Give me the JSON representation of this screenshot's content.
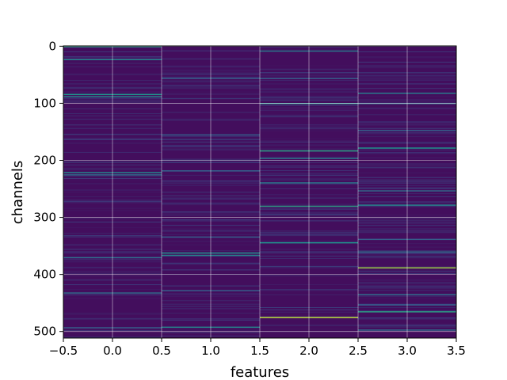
{
  "chart_data": {
    "type": "heatmap",
    "title": "",
    "xlabel": "features",
    "ylabel": "channels",
    "xlim": [
      -0.5,
      3.5
    ],
    "ylim": [
      511.5,
      -0.5
    ],
    "y_inverted": true,
    "x_ticks": [
      -0.5,
      0.0,
      0.5,
      1.0,
      1.5,
      2.0,
      2.5,
      3.0,
      3.5
    ],
    "x_tick_labels": [
      "−0.5",
      "0.0",
      "0.5",
      "1.0",
      "1.5",
      "2.0",
      "2.5",
      "3.0",
      "3.5"
    ],
    "y_ticks": [
      0,
      100,
      200,
      300,
      400,
      500
    ],
    "y_tick_labels": [
      "0",
      "100",
      "200",
      "300",
      "400",
      "500"
    ],
    "grid": true,
    "colormap": "viridis",
    "colormap_stops": [
      "#440154",
      "#3b528b",
      "#21918c",
      "#5ec962",
      "#fde725"
    ],
    "n_channels": 512,
    "features": [
      0,
      1,
      2,
      3
    ],
    "background_level": 0.04,
    "highlights": [
      {
        "feature": 0,
        "channel": 0,
        "value": 0.55
      },
      {
        "feature": 0,
        "channel": 23,
        "value": 0.45
      },
      {
        "feature": 0,
        "channel": 84,
        "value": 0.5
      },
      {
        "feature": 0,
        "channel": 88,
        "value": 0.45
      },
      {
        "feature": 0,
        "channel": 221,
        "value": 0.45
      },
      {
        "feature": 0,
        "channel": 225,
        "value": 0.35
      },
      {
        "feature": 0,
        "channel": 370,
        "value": 0.35
      },
      {
        "feature": 0,
        "channel": 432,
        "value": 0.35
      },
      {
        "feature": 0,
        "channel": 493,
        "value": 0.3
      },
      {
        "feature": 1,
        "channel": 56,
        "value": 0.3
      },
      {
        "feature": 1,
        "channel": 155,
        "value": 0.3
      },
      {
        "feature": 1,
        "channel": 218,
        "value": 0.3
      },
      {
        "feature": 1,
        "channel": 334,
        "value": 0.3
      },
      {
        "feature": 1,
        "channel": 362,
        "value": 0.5
      },
      {
        "feature": 1,
        "channel": 366,
        "value": 0.45
      },
      {
        "feature": 1,
        "channel": 428,
        "value": 0.3
      },
      {
        "feature": 1,
        "channel": 492,
        "value": 0.45
      },
      {
        "feature": 2,
        "channel": 8,
        "value": 0.4
      },
      {
        "feature": 2,
        "channel": 56,
        "value": 0.3
      },
      {
        "feature": 2,
        "channel": 100,
        "value": 0.5
      },
      {
        "feature": 2,
        "channel": 183,
        "value": 0.55
      },
      {
        "feature": 2,
        "channel": 196,
        "value": 0.4
      },
      {
        "feature": 2,
        "channel": 239,
        "value": 0.4
      },
      {
        "feature": 2,
        "channel": 280,
        "value": 0.55
      },
      {
        "feature": 2,
        "channel": 344,
        "value": 0.5
      },
      {
        "feature": 2,
        "channel": 475,
        "value": 0.9
      },
      {
        "feature": 3,
        "channel": 82,
        "value": 0.4
      },
      {
        "feature": 3,
        "channel": 100,
        "value": 0.35
      },
      {
        "feature": 3,
        "channel": 147,
        "value": 0.3
      },
      {
        "feature": 3,
        "channel": 178,
        "value": 0.5
      },
      {
        "feature": 3,
        "channel": 253,
        "value": 0.35
      },
      {
        "feature": 3,
        "channel": 278,
        "value": 0.45
      },
      {
        "feature": 3,
        "channel": 338,
        "value": 0.3
      },
      {
        "feature": 3,
        "channel": 360,
        "value": 0.35
      },
      {
        "feature": 3,
        "channel": 388,
        "value": 0.85
      },
      {
        "feature": 3,
        "channel": 435,
        "value": 0.35
      },
      {
        "feature": 3,
        "channel": 453,
        "value": 0.3
      },
      {
        "feature": 3,
        "channel": 465,
        "value": 0.55
      },
      {
        "feature": 3,
        "channel": 497,
        "value": 0.35
      }
    ]
  }
}
